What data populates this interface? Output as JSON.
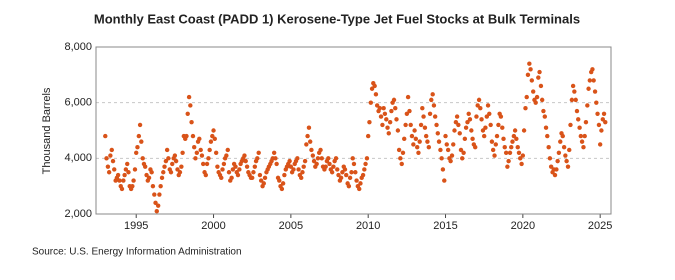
{
  "chart_data": {
    "type": "scatter",
    "title": "Monthly East Coast (PADD 1) Kerosene-Type Jet Fuel Stocks at Bulk Terminals",
    "y_label": "Thousand Barrels",
    "source": "Source: U.S. Energy Information Administration",
    "color": "#d95319",
    "grid": true,
    "xlim": [
      1992.4,
      2025.7
    ],
    "xticks": [
      1995,
      2000,
      2005,
      2010,
      2015,
      2020,
      2025
    ],
    "ylim": [
      2000,
      8000
    ],
    "yticks": [
      {
        "value": 2000,
        "label": "2,000"
      },
      {
        "value": 4000,
        "label": "4,000"
      },
      {
        "value": 6000,
        "label": "6,000"
      },
      {
        "value": 8000,
        "label": "8,000"
      }
    ],
    "x": [
      1993.0,
      1993.08,
      1993.17,
      1993.25,
      1993.33,
      1993.42,
      1993.5,
      1993.58,
      1993.67,
      1993.75,
      1993.83,
      1993.92,
      1994.0,
      1994.08,
      1994.17,
      1994.25,
      1994.33,
      1994.42,
      1994.5,
      1994.58,
      1994.67,
      1994.75,
      1994.83,
      1994.92,
      1995.0,
      1995.08,
      1995.17,
      1995.25,
      1995.33,
      1995.42,
      1995.5,
      1995.58,
      1995.67,
      1995.75,
      1995.83,
      1995.92,
      1996.0,
      1996.08,
      1996.17,
      1996.25,
      1996.33,
      1996.42,
      1996.5,
      1996.58,
      1996.67,
      1996.75,
      1996.83,
      1996.92,
      1997.0,
      1997.08,
      1997.17,
      1997.25,
      1997.33,
      1997.42,
      1997.5,
      1997.58,
      1997.67,
      1997.75,
      1997.83,
      1997.92,
      1998.0,
      1998.08,
      1998.17,
      1998.25,
      1998.33,
      1998.42,
      1998.5,
      1998.58,
      1998.67,
      1998.75,
      1998.83,
      1998.92,
      1999.0,
      1999.08,
      1999.17,
      1999.25,
      1999.33,
      1999.42,
      1999.5,
      1999.58,
      1999.67,
      1999.75,
      1999.83,
      1999.92,
      2000.0,
      2000.08,
      2000.17,
      2000.25,
      2000.33,
      2000.42,
      2000.5,
      2000.58,
      2000.67,
      2000.75,
      2000.83,
      2000.92,
      2001.0,
      2001.08,
      2001.17,
      2001.25,
      2001.33,
      2001.42,
      2001.5,
      2001.58,
      2001.67,
      2001.75,
      2001.83,
      2001.92,
      2002.0,
      2002.08,
      2002.17,
      2002.25,
      2002.33,
      2002.42,
      2002.5,
      2002.58,
      2002.67,
      2002.75,
      2002.83,
      2002.92,
      2003.0,
      2003.08,
      2003.17,
      2003.25,
      2003.33,
      2003.42,
      2003.5,
      2003.58,
      2003.67,
      2003.75,
      2003.83,
      2003.92,
      2004.0,
      2004.08,
      2004.17,
      2004.25,
      2004.33,
      2004.42,
      2004.5,
      2004.58,
      2004.67,
      2004.75,
      2004.83,
      2004.92,
      2005.0,
      2005.08,
      2005.17,
      2005.25,
      2005.33,
      2005.42,
      2005.5,
      2005.58,
      2005.67,
      2005.75,
      2005.83,
      2005.92,
      2006.0,
      2006.08,
      2006.17,
      2006.25,
      2006.33,
      2006.42,
      2006.5,
      2006.58,
      2006.67,
      2006.75,
      2006.83,
      2006.92,
      2007.0,
      2007.08,
      2007.17,
      2007.25,
      2007.33,
      2007.42,
      2007.5,
      2007.58,
      2007.67,
      2007.75,
      2007.83,
      2007.92,
      2008.0,
      2008.08,
      2008.17,
      2008.25,
      2008.33,
      2008.42,
      2008.5,
      2008.58,
      2008.67,
      2008.75,
      2008.83,
      2008.92,
      2009.0,
      2009.08,
      2009.17,
      2009.25,
      2009.33,
      2009.42,
      2009.5,
      2009.58,
      2009.67,
      2009.75,
      2009.83,
      2009.92,
      2010.0,
      2010.08,
      2010.17,
      2010.25,
      2010.33,
      2010.42,
      2010.5,
      2010.58,
      2010.67,
      2010.75,
      2010.83,
      2010.92,
      2011.0,
      2011.08,
      2011.17,
      2011.25,
      2011.33,
      2011.42,
      2011.5,
      2011.58,
      2011.67,
      2011.75,
      2011.83,
      2011.92,
      2012.0,
      2012.08,
      2012.17,
      2012.25,
      2012.33,
      2012.42,
      2012.5,
      2012.58,
      2012.67,
      2012.75,
      2012.83,
      2012.92,
      2013.0,
      2013.08,
      2013.17,
      2013.25,
      2013.33,
      2013.42,
      2013.5,
      2013.58,
      2013.67,
      2013.75,
      2013.83,
      2013.92,
      2014.0,
      2014.08,
      2014.17,
      2014.25,
      2014.33,
      2014.42,
      2014.5,
      2014.58,
      2014.67,
      2014.75,
      2014.83,
      2014.92,
      2015.0,
      2015.08,
      2015.17,
      2015.25,
      2015.33,
      2015.42,
      2015.5,
      2015.58,
      2015.67,
      2015.75,
      2015.83,
      2015.92,
      2016.0,
      2016.08,
      2016.17,
      2016.25,
      2016.33,
      2016.42,
      2016.5,
      2016.58,
      2016.67,
      2016.75,
      2016.83,
      2016.92,
      2017.0,
      2017.08,
      2017.17,
      2017.25,
      2017.33,
      2017.42,
      2017.5,
      2017.58,
      2017.67,
      2017.75,
      2017.83,
      2017.92,
      2018.0,
      2018.08,
      2018.17,
      2018.25,
      2018.33,
      2018.42,
      2018.5,
      2018.58,
      2018.67,
      2018.75,
      2018.83,
      2018.92,
      2019.0,
      2019.08,
      2019.17,
      2019.25,
      2019.33,
      2019.42,
      2019.5,
      2019.58,
      2019.67,
      2019.75,
      2019.83,
      2019.92,
      2020.0,
      2020.08,
      2020.17,
      2020.25,
      2020.33,
      2020.42,
      2020.5,
      2020.58,
      2020.67,
      2020.75,
      2020.83,
      2020.92,
      2021.0,
      2021.08,
      2021.17,
      2021.25,
      2021.33,
      2021.42,
      2021.5,
      2021.58,
      2021.67,
      2021.75,
      2021.83,
      2021.92,
      2022.0,
      2022.08,
      2022.17,
      2022.25,
      2022.33,
      2022.42,
      2022.5,
      2022.58,
      2022.67,
      2022.75,
      2022.83,
      2022.92,
      2023.0,
      2023.08,
      2023.17,
      2023.25,
      2023.33,
      2023.42,
      2023.5,
      2023.58,
      2023.67,
      2023.75,
      2023.83,
      2023.92,
      2024.0,
      2024.08,
      2024.17,
      2024.25,
      2024.33,
      2024.42,
      2024.5,
      2024.58,
      2024.67,
      2024.75,
      2024.83,
      2024.92,
      2025.0,
      2025.08,
      2025.17,
      2025.25,
      2025.33
    ],
    "values": [
      4800,
      4000,
      3700,
      3500,
      4100,
      4300,
      3900,
      3600,
      3200,
      3300,
      3400,
      3200,
      3000,
      2900,
      3200,
      3400,
      3600,
      3800,
      3500,
      3000,
      2900,
      3000,
      3200,
      3600,
      4200,
      4400,
      4800,
      5200,
      4600,
      4000,
      3800,
      3700,
      3400,
      3200,
      3300,
      3600,
      3500,
      3000,
      2700,
      2400,
      2100,
      2300,
      2700,
      3000,
      3300,
      3500,
      3700,
      3900,
      4300,
      4000,
      3600,
      3500,
      3800,
      4000,
      4100,
      3900,
      3600,
      3400,
      3500,
      3700,
      4200,
      4800,
      4700,
      4800,
      5600,
      6200,
      5900,
      5300,
      4800,
      4400,
      4000,
      4200,
      4600,
      4700,
      4300,
      4100,
      3800,
      3500,
      3400,
      3800,
      4000,
      4300,
      4600,
      4800,
      5000,
      4700,
      4200,
      3700,
      3500,
      3400,
      3300,
      3600,
      3800,
      4000,
      4100,
      4300,
      3500,
      3200,
      3300,
      3600,
      3800,
      3700,
      3500,
      3400,
      3600,
      3800,
      3900,
      4000,
      4100,
      3900,
      3700,
      3500,
      3400,
      3300,
      3300,
      3500,
      3700,
      3900,
      4000,
      4200,
      3400,
      3200,
      3000,
      3100,
      3300,
      3500,
      3600,
      3700,
      3800,
      3900,
      4000,
      4200,
      4000,
      3800,
      3300,
      3200,
      3000,
      2900,
      3100,
      3400,
      3600,
      3700,
      3800,
      3900,
      3700,
      3500,
      3600,
      3800,
      3900,
      4000,
      3600,
      3400,
      3300,
      3500,
      3700,
      3900,
      4500,
      4800,
      5100,
      4600,
      4300,
      4100,
      3900,
      3700,
      3800,
      4000,
      4200,
      4300,
      4000,
      3700,
      3600,
      3700,
      3900,
      4000,
      3800,
      3600,
      3500,
      3700,
      3900,
      4000,
      3600,
      3400,
      3200,
      3300,
      3500,
      3700,
      3600,
      3400,
      3100,
      3000,
      3300,
      3500,
      4000,
      3800,
      3500,
      3200,
      3000,
      2900,
      3100,
      3300,
      3400,
      3600,
      3800,
      4000,
      4800,
      5300,
      6000,
      6500,
      6700,
      6600,
      6300,
      5900,
      5700,
      5800,
      5500,
      5200,
      5800,
      5600,
      5400,
      5100,
      4900,
      5300,
      5700,
      6000,
      6100,
      5800,
      5400,
      5000,
      4300,
      4000,
      3800,
      4200,
      4700,
      5200,
      5600,
      6200,
      5700,
      5200,
      4800,
      4500,
      5000,
      4700,
      4400,
      4200,
      4600,
      5200,
      5800,
      5500,
      5100,
      4800,
      4600,
      4400,
      5600,
      6100,
      6300,
      5900,
      5500,
      5200,
      4900,
      4600,
      4300,
      4000,
      3600,
      3200,
      4800,
      4500,
      4300,
      4000,
      3900,
      4100,
      4500,
      5000,
      5300,
      5500,
      5200,
      4900,
      4300,
      4000,
      4200,
      4700,
      5100,
      5300,
      5600,
      5400,
      5000,
      4700,
      4500,
      4400,
      5500,
      5900,
      6100,
      5800,
      5400,
      5000,
      4800,
      5100,
      5500,
      5900,
      5600,
      5200,
      4600,
      4300,
      4100,
      4500,
      4800,
      5200,
      5600,
      5500,
      5100,
      4700,
      4400,
      4200,
      3700,
      3900,
      4200,
      4400,
      4600,
      4800,
      5000,
      4700,
      4400,
      4200,
      4000,
      3800,
      4100,
      5000,
      5800,
      6200,
      7000,
      7400,
      7200,
      6800,
      6400,
      6100,
      6000,
      6200,
      6900,
      7100,
      6600,
      6100,
      5700,
      5500,
      5100,
      4800,
      4400,
      4000,
      3700,
      3500,
      3600,
      3400,
      3600,
      3900,
      4200,
      4600,
      4900,
      4800,
      4400,
      4100,
      3900,
      3700,
      4300,
      5200,
      6100,
      6600,
      6400,
      6100,
      5700,
      5400,
      5100,
      4800,
      4600,
      4400,
      4800,
      5300,
      5900,
      6500,
      6800,
      7100,
      7200,
      6800,
      6400,
      6000,
      5600,
      5200,
      4500,
      5000,
      5400,
      5600,
      5300
    ]
  }
}
